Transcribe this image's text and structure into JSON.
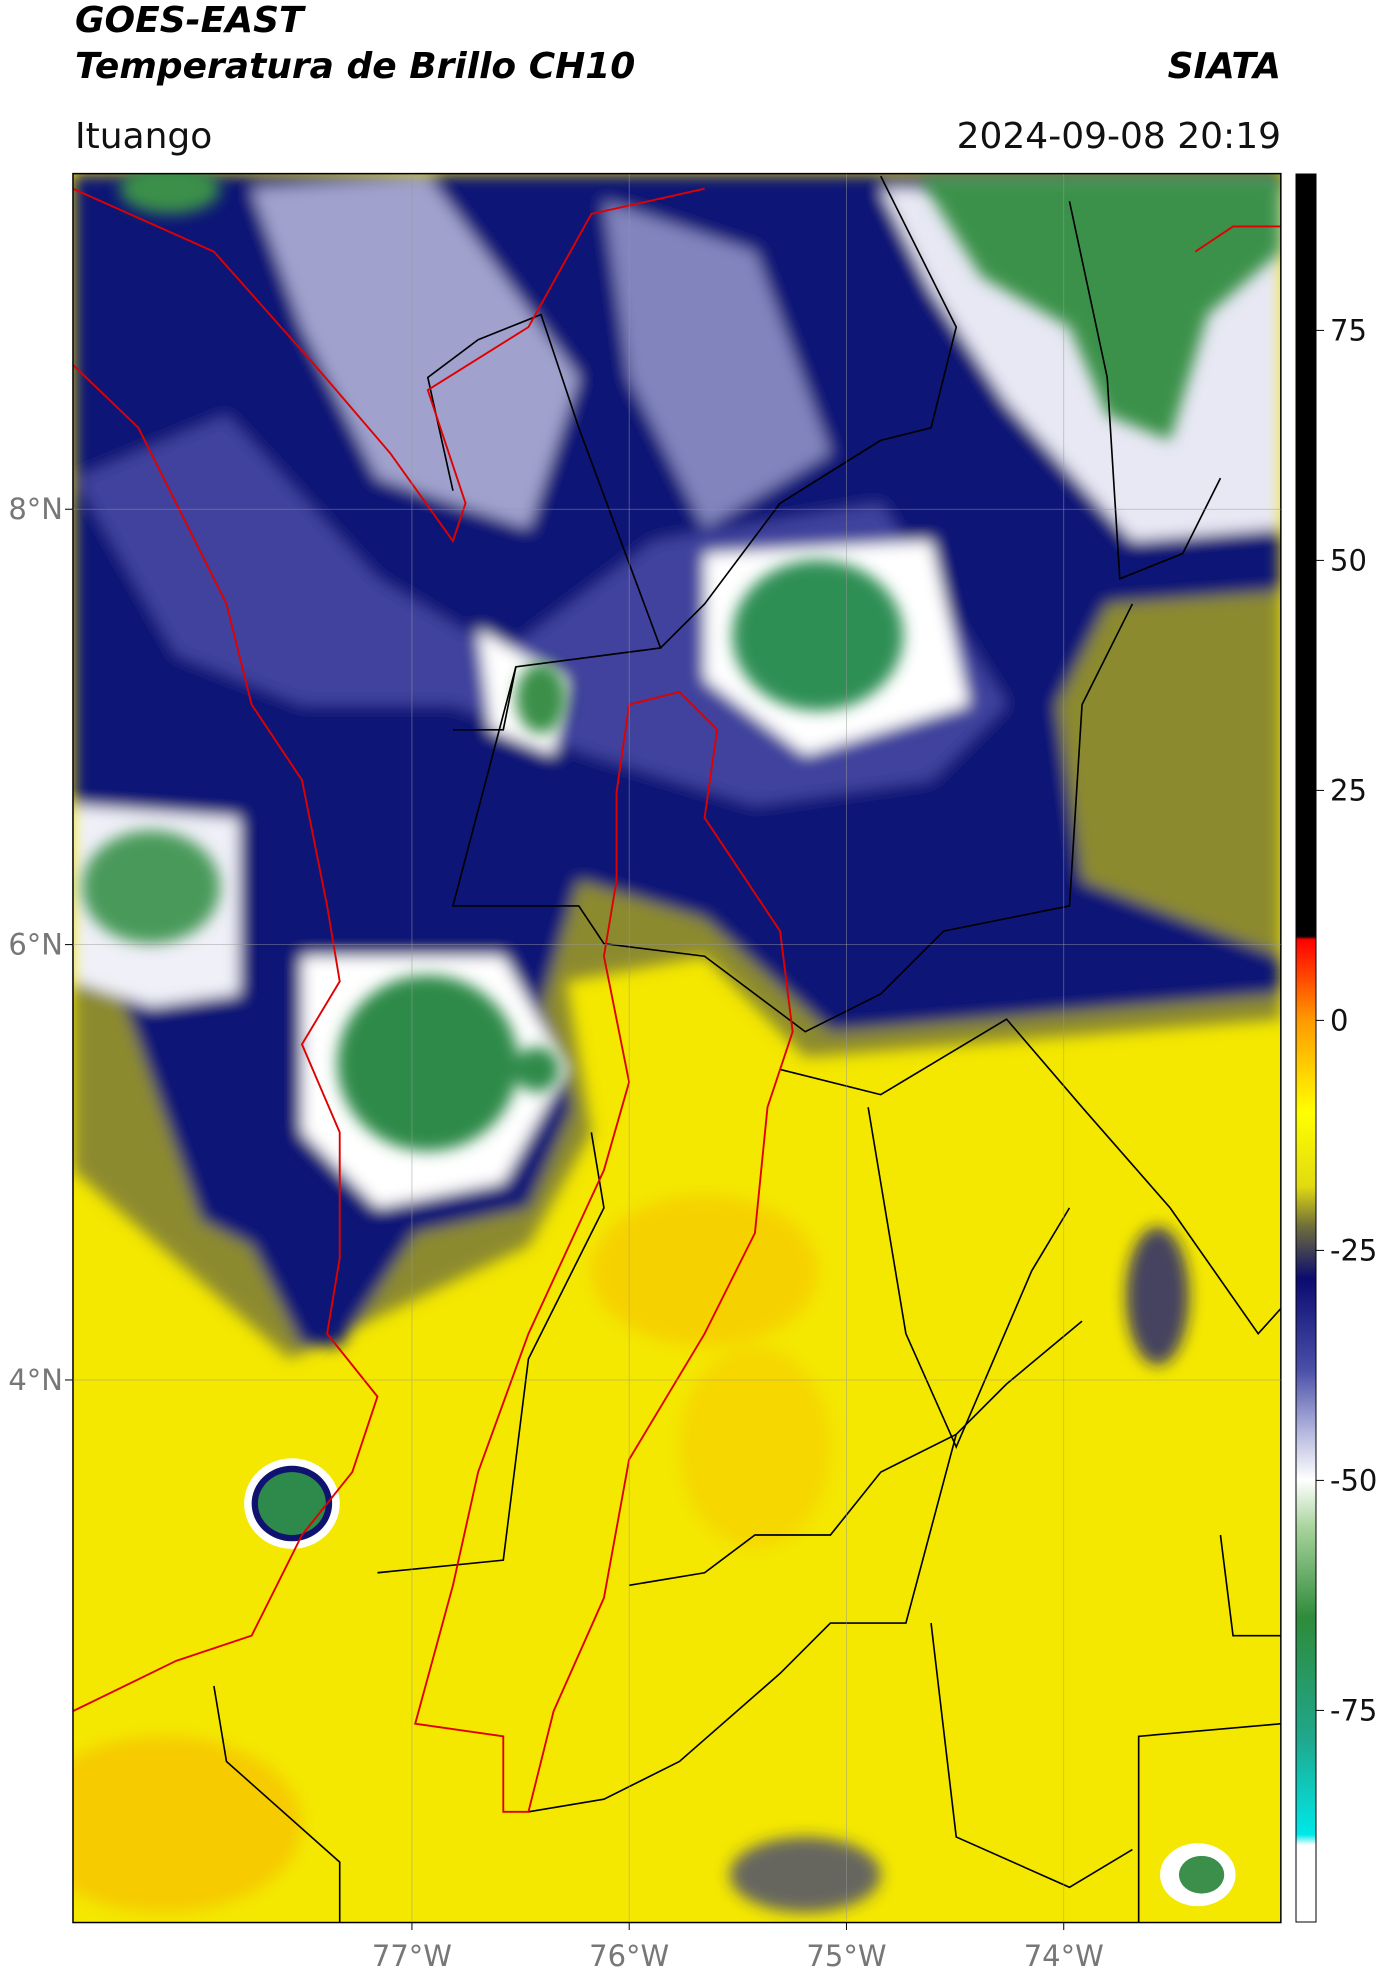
{
  "header": {
    "title": "GOES-EAST",
    "subtitle": "Temperatura de Brillo CH10",
    "source": "SIATA",
    "location": "Ituango",
    "datetime": "2024-09-08 20:19"
  },
  "map": {
    "xlim": [
      -78.56,
      -73.0
    ],
    "ylim": [
      1.51,
      9.54
    ],
    "xticks": [
      {
        "value": -77,
        "label": "77°W"
      },
      {
        "value": -76,
        "label": "76°W"
      },
      {
        "value": -75,
        "label": "75°W"
      },
      {
        "value": -74,
        "label": "74°W"
      }
    ],
    "yticks": [
      {
        "value": 8,
        "label": "8°N"
      },
      {
        "value": 6,
        "label": "6°N"
      },
      {
        "value": 4,
        "label": "4°N"
      }
    ],
    "grid": true
  },
  "colorbar": {
    "lim": [
      -98,
      92
    ],
    "ticks": [
      75,
      50,
      25,
      0,
      -25,
      -50,
      -75
    ]
  }
}
